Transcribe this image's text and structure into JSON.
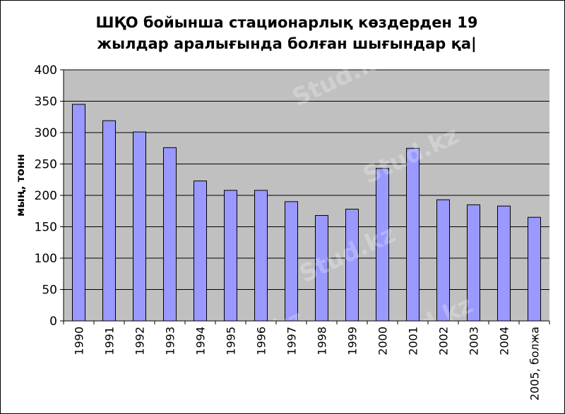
{
  "chart_data": {
    "type": "bar",
    "title_lines": [
      "ШҚО бойынша стационарлық көздерден 19",
      "жылдар аралығында болған шығындар қа|"
    ],
    "ylabel": "мың, тонн",
    "xlabel": "",
    "categories": [
      "1990",
      "1991",
      "1992",
      "1993",
      "1994",
      "1995",
      "1996",
      "1997",
      "1998",
      "1999",
      "2000",
      "2001",
      "2002",
      "2003",
      "2004",
      "2005, болжа"
    ],
    "values": [
      345,
      319,
      301,
      276,
      223,
      208,
      208,
      190,
      168,
      178,
      243,
      275,
      193,
      185,
      183,
      165
    ],
    "ylim": [
      0,
      400
    ],
    "yticks": [
      0,
      50,
      100,
      150,
      200,
      250,
      300,
      350,
      400
    ],
    "grid": true,
    "legend": "none",
    "colors": {
      "bar_fill": "#9999ff",
      "bar_stroke": "#000000",
      "plot_bg": "#c0c0c0",
      "grid": "#000000"
    }
  },
  "watermark": "Stud.kz"
}
